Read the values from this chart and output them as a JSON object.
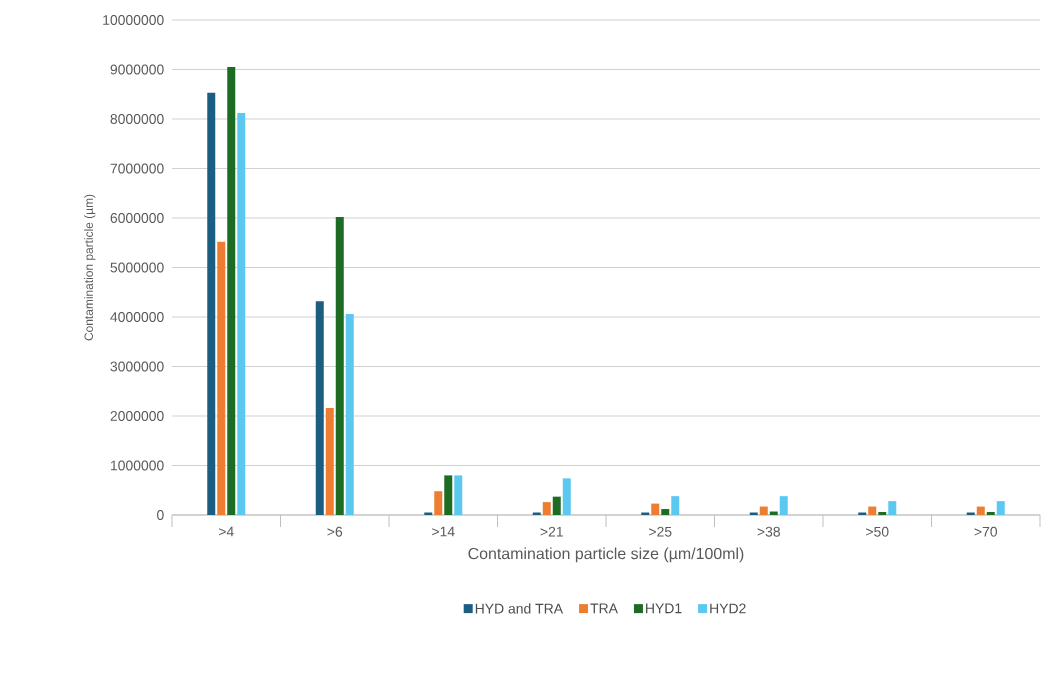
{
  "chart_data": {
    "type": "bar",
    "xlabel": "Contamination particle size (µm/100ml)",
    "ylabel": "Contamination particle (µm)",
    "categories": [
      ">4",
      ">6",
      ">14",
      ">21",
      ">25",
      ">38",
      ">50",
      ">70"
    ],
    "series": [
      {
        "name": "HYD and TRA",
        "color": "#1b5e82",
        "values": [
          8530000,
          4320000,
          50000,
          50000,
          50000,
          50000,
          50000,
          50000
        ]
      },
      {
        "name": "TRA",
        "color": "#ed7d31",
        "values": [
          5520000,
          2160000,
          480000,
          260000,
          230000,
          170000,
          170000,
          170000
        ]
      },
      {
        "name": "HYD1",
        "color": "#1e6b24",
        "values": [
          9050000,
          6020000,
          800000,
          370000,
          120000,
          70000,
          60000,
          60000
        ]
      },
      {
        "name": "HYD2",
        "color": "#5bc8f0",
        "values": [
          8120000,
          4060000,
          800000,
          740000,
          380000,
          380000,
          280000,
          280000
        ]
      }
    ],
    "ylim": [
      0,
      10000000
    ],
    "yticks": [
      0,
      1000000,
      2000000,
      3000000,
      4000000,
      5000000,
      6000000,
      7000000,
      8000000,
      9000000,
      10000000
    ],
    "grid": "y",
    "legend": "bottom"
  }
}
